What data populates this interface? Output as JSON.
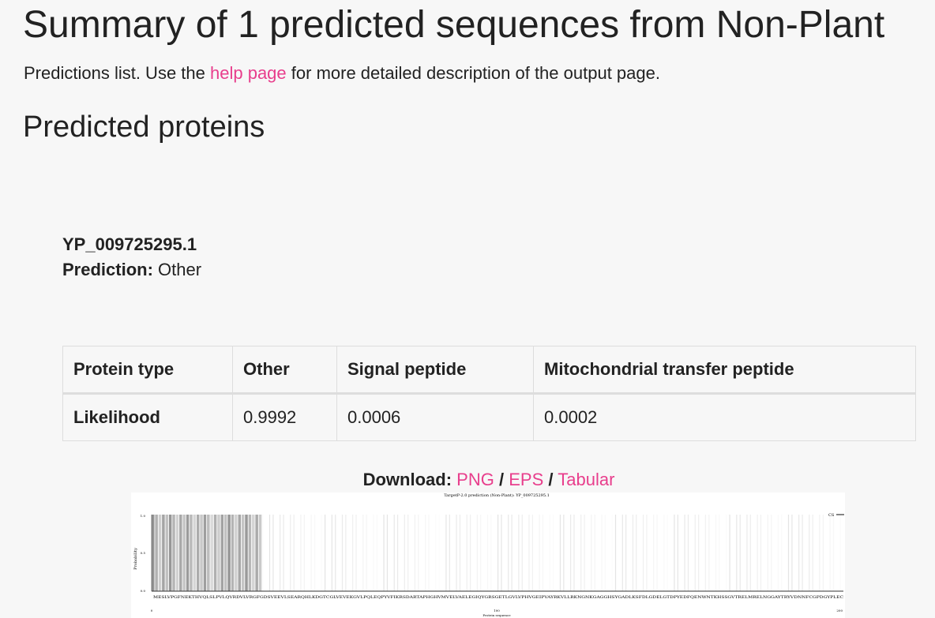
{
  "header": {
    "title": "Summary of 1 predicted sequences from Non-Plant",
    "intro": {
      "before": "Predictions list. Use the",
      "link": "help page",
      "after": "for more detailed description of the output page."
    }
  },
  "section_title": "Predicted proteins",
  "protein": {
    "id": "YP_009725295.1",
    "prediction_label": "Prediction:",
    "prediction": "Other"
  },
  "table": {
    "header": [
      "Protein type",
      "Other",
      "Signal peptide",
      "Mitochondrial transfer peptide"
    ],
    "rows": [
      [
        "Likelihood",
        "0.9992",
        "0.0006",
        "0.0002"
      ]
    ]
  },
  "download": {
    "label": "Download:",
    "links": [
      "PNG",
      "EPS",
      "Tabular"
    ],
    "separator": "/"
  },
  "figure": {
    "title": "TargetP-2.0 prediction (Non-Plant): YP_009725295.1",
    "y_label": "Probability",
    "yticks": [
      "1.0",
      "0.5",
      "0.0"
    ],
    "x_label": "Protein sequence",
    "xticks": [
      "0",
      "100",
      "200"
    ],
    "legend": "CS",
    "sequence": "MESLVPGFNEKTHVQLSLPVLQVRDVLVRGFGDSVEEVLSEARQHLKDGTCGLVEVEKGVLPQLEQPYVFIKRSDARTAPHGHVMVELVAELEGIQYGRSGETLGVLVPHVGEIPVAYRKVLLRKNGNKGAGGHSYGADLKSFDLGDELGTDPYEDFQENWNTKHSSGVTRELMRELNGGAYTRYVDNNFCGPDGYPLEC"
  }
}
